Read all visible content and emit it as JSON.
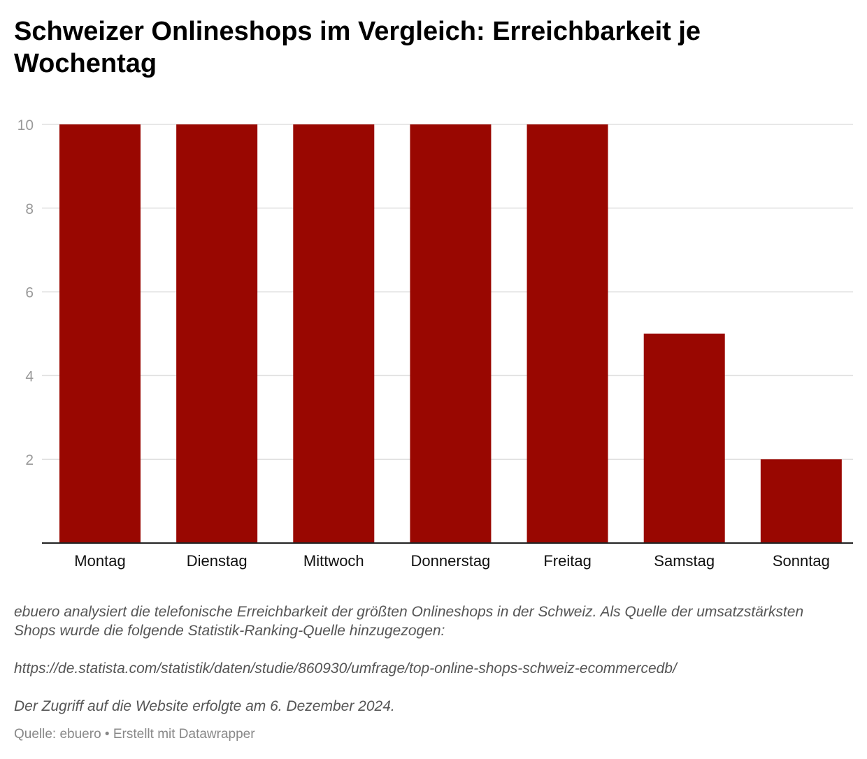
{
  "title": "Schweizer Onlineshops im Vergleich: Erreichbarkeit je Wochentag",
  "notes": {
    "line1": "ebuero analysiert die telefonische Erreichbarkeit der größten Onlineshops in der Schweiz. Als Quelle der umsatzstärksten Shops wurde die folgende Statistik-Ranking-Quelle hinzugezogen:",
    "line2": "https://de.statista.com/statistik/daten/studie/860930/umfrage/top-online-shops-schweiz-ecommercedb/",
    "line3": "Der Zugriff auf die Website erfolgte am 6. Dezember 2024."
  },
  "footer": "Quelle: ebuero • Erstellt mit Datawrapper",
  "colors": {
    "bar": "#990701",
    "grid": "#e0e0e0",
    "tick": "#9a9a9a",
    "axis": "#222222"
  },
  "chart_data": {
    "type": "bar",
    "categories": [
      "Montag",
      "Dienstag",
      "Mittwoch",
      "Donnerstag",
      "Freitag",
      "Samstag",
      "Sonntag"
    ],
    "values": [
      10,
      10,
      10,
      10,
      10,
      5,
      2
    ],
    "yticks": [
      2,
      4,
      6,
      8,
      10
    ],
    "ylim": [
      0,
      10
    ],
    "grid": true
  }
}
